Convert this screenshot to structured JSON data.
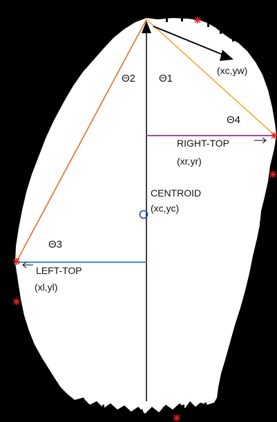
{
  "labels": {
    "theta1": "Θ1",
    "theta2": "Θ2",
    "theta3": "Θ3",
    "theta4": "Θ4",
    "top_vector": "(xc,yw)",
    "right_top": "RIGHT-TOP",
    "right_top_coords": "(xr,yr)",
    "centroid": "CENTROID",
    "centroid_coords": "(xc,yc)",
    "left_top": "LEFT-TOP",
    "left_top_coords": "(xl,yl)"
  },
  "colors": {
    "background": "#000000",
    "blob": "#ffffff",
    "axis": "#000000",
    "left_line": "#e07a3a",
    "right_line": "#f0b040",
    "right_top_line": "#9a4fa0",
    "left_top_line": "#3a8fd8",
    "centroid_marker": "#1a3fd0",
    "star_markers": "#e02020"
  }
}
